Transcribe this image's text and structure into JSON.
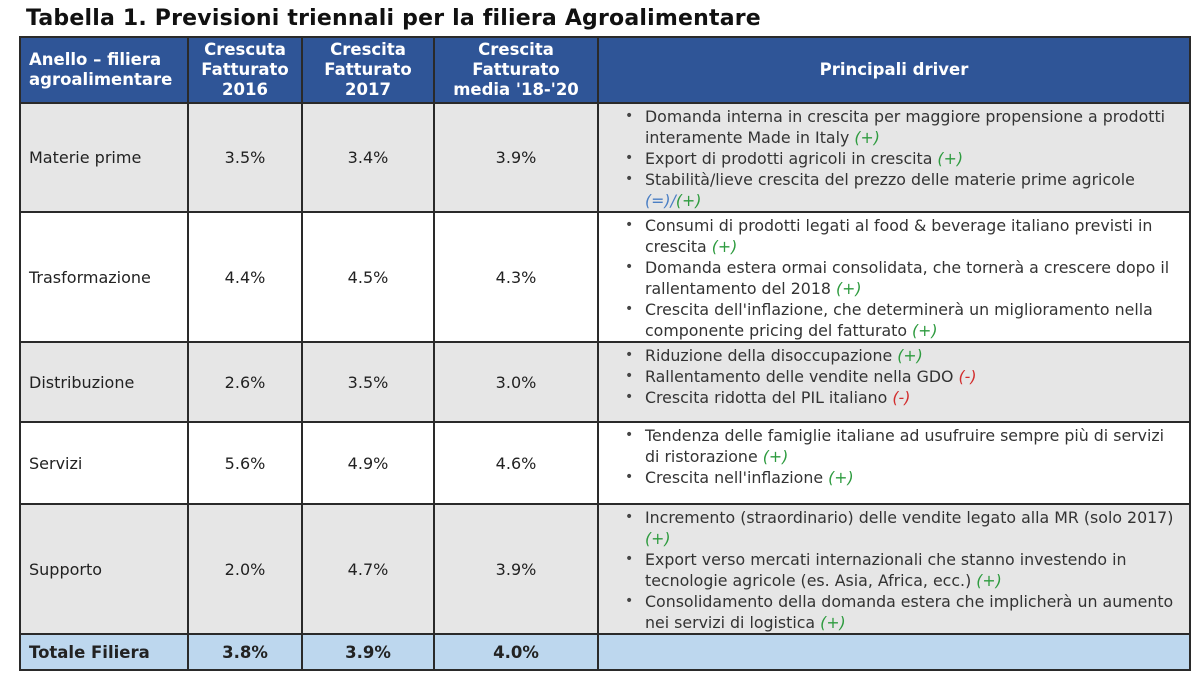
{
  "title": "Tabella 1. Previsioni triennali per la filiera Agroalimentare",
  "headers": {
    "anello_1": "Anello – filiera",
    "anello_2": "agroalimentare",
    "c2016_1": "Crescuta",
    "c2016_2": "Fatturato",
    "c2016_3": "2016",
    "c2017_1": "Crescita",
    "c2017_2": "Fatturato",
    "c2017_3": "2017",
    "cmedia_1": "Crescita",
    "cmedia_2": "Fatturato",
    "cmedia_3": "media '18-'20",
    "drivers": "Principali driver"
  },
  "rows": [
    {
      "anello": "Materie prime",
      "c2016": "3.5%",
      "c2017": "3.4%",
      "media": "3.9%",
      "drivers": [
        {
          "text": "Domanda interna in crescita per maggiore propensione a prodotti interamente Made in Italy",
          "tags": [
            {
              "t": "(+)",
              "k": "pos"
            }
          ]
        },
        {
          "text": "Export di prodotti agricoli in crescita",
          "tags": [
            {
              "t": "(+)",
              "k": "pos"
            }
          ]
        },
        {
          "text": "Stabilità/lieve crescita del prezzo delle materie prime agricole",
          "tags": [
            {
              "t": "(=)/",
              "k": "eq"
            },
            {
              "t": "(+)",
              "k": "pos"
            }
          ]
        }
      ]
    },
    {
      "anello": "Trasformazione",
      "c2016": "4.4%",
      "c2017": "4.5%",
      "media": "4.3%",
      "drivers": [
        {
          "text": "Consumi di prodotti legati al food & beverage italiano previsti in crescita",
          "tags": [
            {
              "t": "(+)",
              "k": "pos"
            }
          ]
        },
        {
          "text": "Domanda estera ormai consolidata, che tornerà a crescere dopo il rallentamento del 2018",
          "tags": [
            {
              "t": "(+)",
              "k": "pos"
            }
          ]
        },
        {
          "text": "Crescita dell'inflazione, che determinerà un miglioramento nella componente pricing del fatturato",
          "tags": [
            {
              "t": "(+)",
              "k": "pos"
            }
          ]
        }
      ]
    },
    {
      "anello": "Distribuzione",
      "c2016": "2.6%",
      "c2017": "3.5%",
      "media": "3.0%",
      "drivers": [
        {
          "text": "Riduzione della disoccupazione",
          "tags": [
            {
              "t": "(+)",
              "k": "pos"
            }
          ]
        },
        {
          "text": "Rallentamento delle vendite nella GDO",
          "tags": [
            {
              "t": "(-)",
              "k": "neg"
            }
          ]
        },
        {
          "text": "Crescita ridotta del PIL italiano",
          "tags": [
            {
              "t": "(-)",
              "k": "neg"
            }
          ]
        }
      ]
    },
    {
      "anello": "Servizi",
      "c2016": "5.6%",
      "c2017": "4.9%",
      "media": "4.6%",
      "drivers": [
        {
          "text": "Tendenza delle famiglie italiane ad usufruire sempre più di servizi di ristorazione",
          "tags": [
            {
              "t": "(+)",
              "k": "pos"
            }
          ]
        },
        {
          "text": "Crescita nell'inflazione",
          "tags": [
            {
              "t": "(+)",
              "k": "pos"
            }
          ]
        }
      ]
    },
    {
      "anello": "Supporto",
      "c2016": "2.0%",
      "c2017": "4.7%",
      "media": "3.9%",
      "drivers": [
        {
          "text": "Incremento (straordinario) delle vendite legato alla MR (solo 2017)",
          "tags": [
            {
              "t": "(+)",
              "k": "pos"
            }
          ]
        },
        {
          "text": "Export verso mercati internazionali che stanno investendo in tecnologie agricole (es. Asia, Africa, ecc.)",
          "tags": [
            {
              "t": "(+)",
              "k": "pos"
            }
          ]
        },
        {
          "text": "Consolidamento della domanda estera che implicherà un aumento nei servizi di logistica",
          "tags": [
            {
              "t": "(+)",
              "k": "pos"
            }
          ]
        }
      ]
    }
  ],
  "total": {
    "anello": "Totale Filiera",
    "c2016": "3.8%",
    "c2017": "3.9%",
    "media": "4.0%"
  },
  "colors": {
    "header_bg": "#2f5597",
    "row_gray": "#e6e6e6",
    "total_bg": "#bdd7ee",
    "positive": "#2e9b3f",
    "negative": "#d22d2d",
    "neutral": "#4b7fc4"
  }
}
